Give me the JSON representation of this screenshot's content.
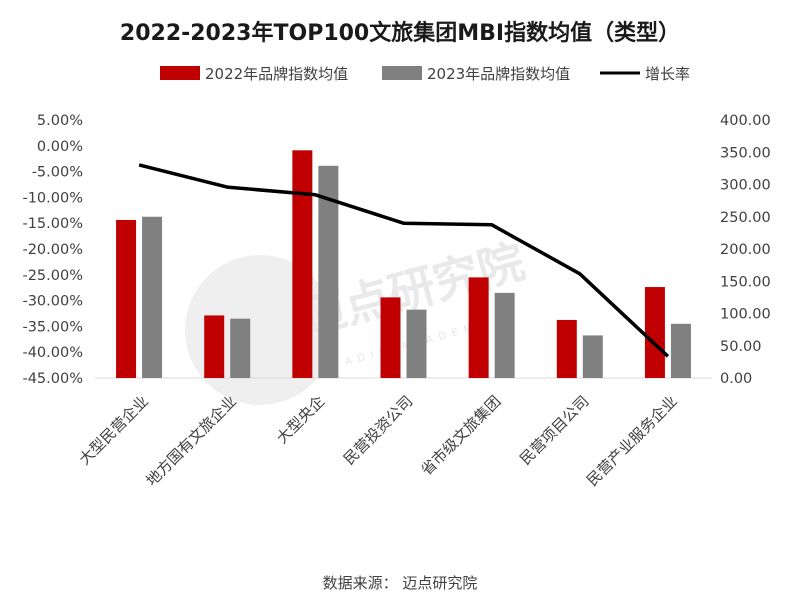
{
  "chart_data": {
    "type": "bar",
    "title": "2022-2023年TOP100文旅集团MBI指数均值（类型）",
    "categories": [
      "大型民营企业",
      "地方国有文旅企业",
      "大型央企",
      "民营投资公司",
      "省市级文旅集团",
      "民营项目公司",
      "民营产业服务企业"
    ],
    "series": [
      {
        "name": "2022年品牌指数均值",
        "type": "bar",
        "axis": "right",
        "color": "#c00000",
        "values": [
          245,
          97,
          353,
          125,
          156,
          90,
          141
        ]
      },
      {
        "name": "2023年品牌指数均值",
        "type": "bar",
        "axis": "right",
        "color": "#808080",
        "values": [
          250,
          92,
          329,
          106,
          132,
          66,
          84
        ]
      },
      {
        "name": "增长率",
        "type": "line",
        "axis": "left",
        "color": "#000000",
        "values": [
          -3.7,
          -8.0,
          -9.5,
          -15.0,
          -15.3,
          -24.8,
          -40.8
        ]
      }
    ],
    "y_left": {
      "min": -45,
      "max": 5,
      "step": 5,
      "ticks": [
        "5.00%",
        "0.00%",
        "-5.00%",
        "-10.00%",
        "-15.00%",
        "-20.00%",
        "-25.00%",
        "-30.00%",
        "-35.00%",
        "-40.00%",
        "-45.00%"
      ]
    },
    "y_right": {
      "min": 0,
      "max": 400,
      "step": 50,
      "ticks": [
        "400.00",
        "350.00",
        "300.00",
        "250.00",
        "200.00",
        "150.00",
        "100.00",
        "50.00",
        "0.00"
      ]
    },
    "legend_position": "top-center",
    "source": "数据来源：  迈点研究院"
  },
  "watermark": {
    "text": "迈点研究院",
    "sub": "MEADIN ACADEMY"
  }
}
